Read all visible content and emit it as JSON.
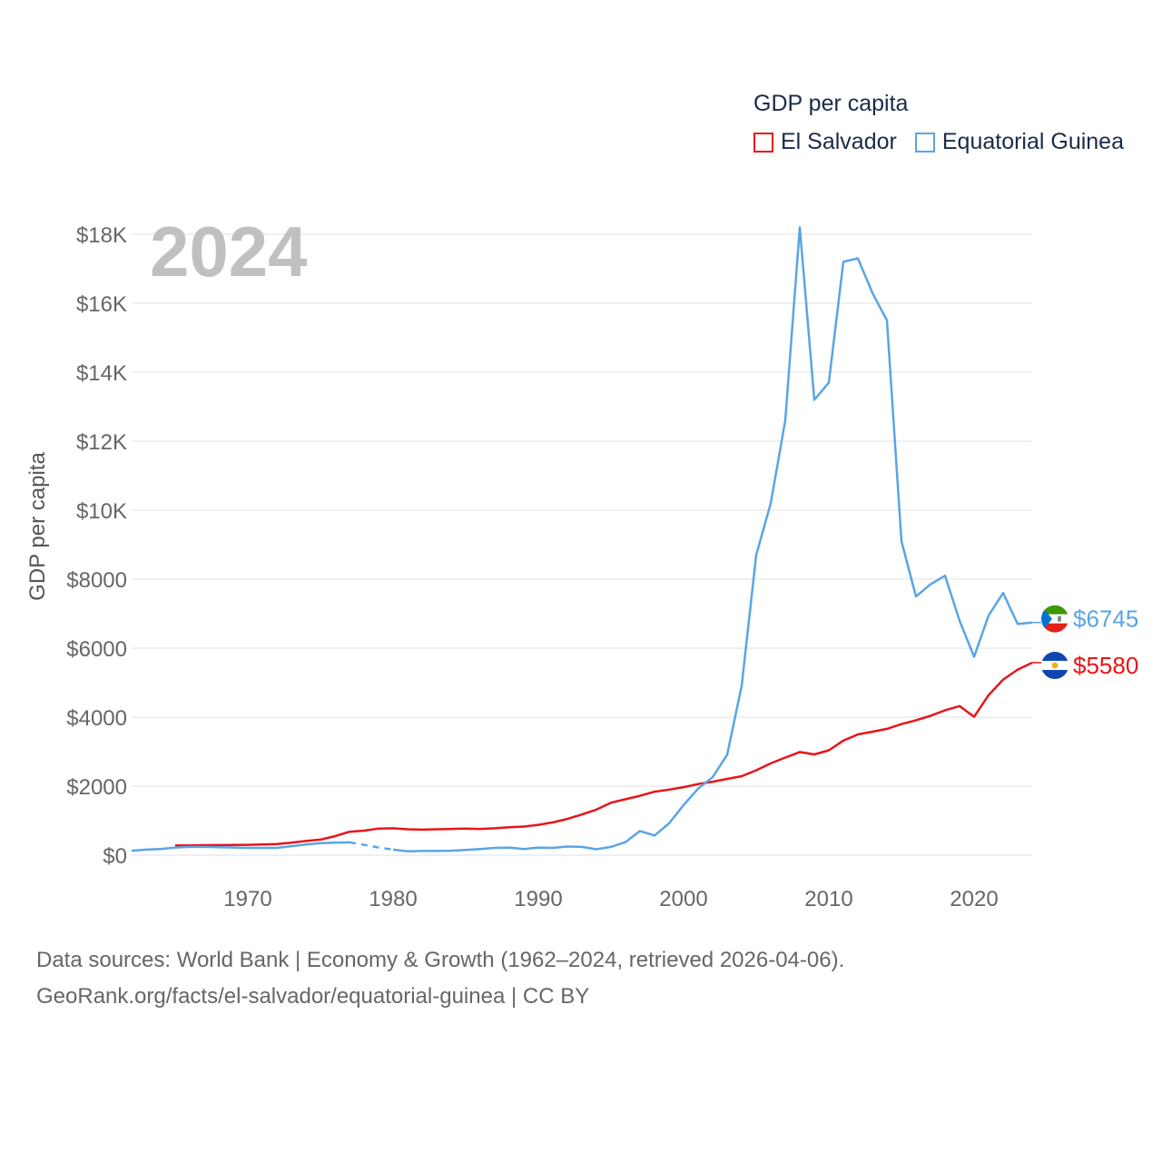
{
  "legend": {
    "title": "GDP per capita",
    "items": [
      {
        "label": "El Salvador",
        "color": "#e8141a"
      },
      {
        "label": "Equatorial Guinea",
        "color": "#5aa5e4"
      }
    ]
  },
  "year_badge": "2024",
  "source_line1": "Data sources: World Bank | Economy & Growth (1962–2024, retrieved 2026-04-06).",
  "source_line2": "GeoRank.org/facts/el-salvador/equatorial-guinea | CC BY",
  "chart_data": {
    "type": "line",
    "title": "GDP per capita",
    "ylabel": "GDP per capita",
    "xlabel": "",
    "xlim": [
      1962,
      2024
    ],
    "ylim": [
      0,
      18000
    ],
    "y_ticks": [
      0,
      2000,
      4000,
      6000,
      8000,
      10000,
      12000,
      14000,
      16000,
      18000
    ],
    "y_tick_labels": [
      "$0",
      "$2000",
      "$4000",
      "$6000",
      "$8000",
      "$10K",
      "$12K",
      "$14K",
      "$16K",
      "$18K"
    ],
    "x_ticks": [
      1970,
      1980,
      1990,
      2000,
      2010,
      2020
    ],
    "x_tick_labels": [
      "1970",
      "1980",
      "1990",
      "2000",
      "2010",
      "2020"
    ],
    "grid": true,
    "series": [
      {
        "name": "El Salvador",
        "color": "#e8141a",
        "end_label": "$5580",
        "x": [
          1965,
          1966,
          1967,
          1968,
          1969,
          1970,
          1971,
          1972,
          1973,
          1974,
          1975,
          1976,
          1977,
          1978,
          1979,
          1980,
          1981,
          1982,
          1983,
          1984,
          1985,
          1986,
          1987,
          1988,
          1989,
          1990,
          1991,
          1992,
          1993,
          1994,
          1995,
          1996,
          1997,
          1998,
          1999,
          2000,
          2001,
          2002,
          2003,
          2004,
          2005,
          2006,
          2007,
          2008,
          2009,
          2010,
          2011,
          2012,
          2013,
          2014,
          2015,
          2016,
          2017,
          2018,
          2019,
          2020,
          2021,
          2022,
          2023,
          2024
        ],
        "y": [
          280,
          285,
          290,
          292,
          295,
          300,
          310,
          320,
          360,
          410,
          450,
          550,
          680,
          710,
          770,
          780,
          750,
          740,
          750,
          760,
          770,
          760,
          780,
          810,
          830,
          880,
          950,
          1050,
          1180,
          1320,
          1520,
          1620,
          1720,
          1840,
          1900,
          1970,
          2060,
          2130,
          2210,
          2290,
          2460,
          2660,
          2830,
          2990,
          2920,
          3040,
          3320,
          3500,
          3580,
          3660,
          3800,
          3910,
          4040,
          4200,
          4320,
          4010,
          4640,
          5090,
          5380,
          5580
        ]
      },
      {
        "name": "Equatorial Guinea",
        "color": "#5aa5e4",
        "end_label": "$6745",
        "x": [
          1962,
          1963,
          1964,
          1965,
          1966,
          1967,
          1968,
          1969,
          1970,
          1971,
          1972,
          1973,
          1974,
          1975,
          1976,
          1977,
          1978,
          1979,
          1980,
          1981,
          1982,
          1983,
          1984,
          1985,
          1986,
          1987,
          1988,
          1989,
          1990,
          1991,
          1992,
          1993,
          1994,
          1995,
          1996,
          1997,
          1998,
          1999,
          2000,
          2001,
          2002,
          2003,
          2004,
          2005,
          2006,
          2007,
          2008,
          2009,
          2010,
          2011,
          2012,
          2013,
          2014,
          2015,
          2016,
          2017,
          2018,
          2019,
          2020,
          2021,
          2022,
          2023,
          2024
        ],
        "y": [
          130,
          160,
          180,
          220,
          240,
          240,
          230,
          220,
          210,
          210,
          210,
          260,
          310,
          350,
          360,
          370,
          300,
          220,
          160,
          110,
          120,
          120,
          130,
          150,
          180,
          210,
          220,
          180,
          220,
          210,
          250,
          240,
          170,
          240,
          380,
          700,
          570,
          920,
          1450,
          1930,
          2260,
          2910,
          4910,
          8700,
          10200,
          12600,
          18200,
          13200,
          13700,
          17200,
          17300,
          16300,
          15500,
          9100,
          7500,
          7850,
          8100,
          6800,
          5750,
          6950,
          7600,
          6700,
          6745
        ],
        "gap_years": [
          1977,
          1980
        ]
      }
    ]
  }
}
